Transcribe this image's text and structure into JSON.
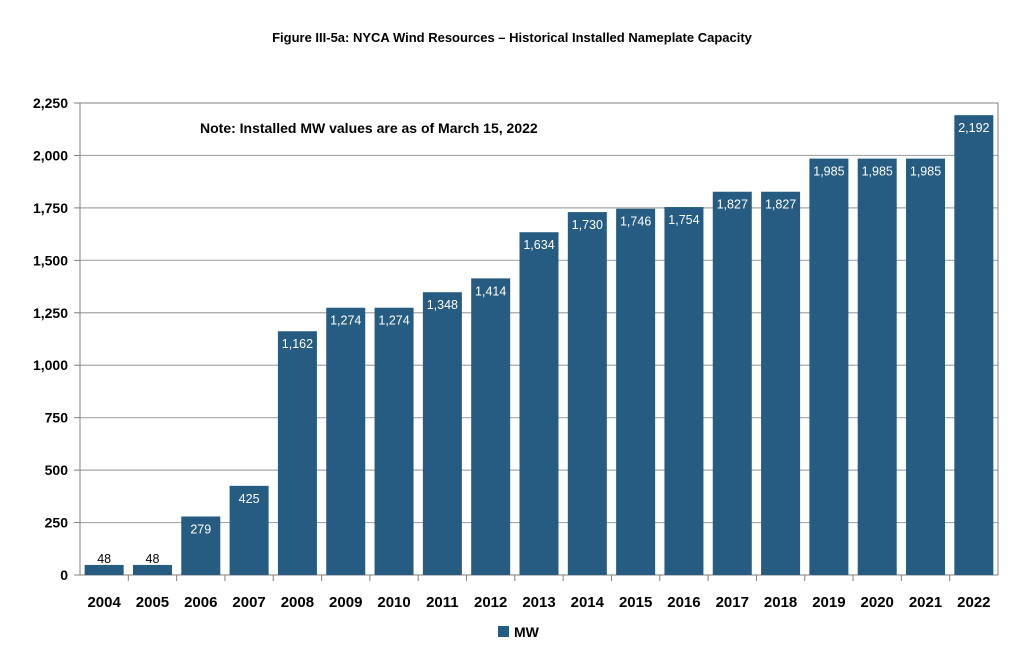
{
  "title": "Figure III-5a: NYCA Wind Resources – Historical Installed Nameplate Capacity",
  "note": "Note: Installed MW values are as of March 15, 2022",
  "colors": {
    "bar": "#265C82",
    "grid": "#A6A6A6",
    "axis": "#808080"
  },
  "chart_data": {
    "type": "bar",
    "title": "Figure III-5a: NYCA Wind Resources – Historical Installed Nameplate Capacity",
    "xlabel": "",
    "ylabel": "",
    "categories": [
      "2004",
      "2005",
      "2006",
      "2007",
      "2008",
      "2009",
      "2010",
      "2011",
      "2012",
      "2013",
      "2014",
      "2015",
      "2016",
      "2017",
      "2018",
      "2019",
      "2020",
      "2021",
      "2022"
    ],
    "series": [
      {
        "name": "MW",
        "values": [
          48,
          48,
          279,
          425,
          1162,
          1274,
          1274,
          1348,
          1414,
          1634,
          1730,
          1746,
          1754,
          1827,
          1827,
          1985,
          1985,
          1985,
          2192
        ],
        "labels": [
          "48",
          "48",
          "279",
          "425",
          "1,162",
          "1,274",
          "1,274",
          "1,348",
          "1,414",
          "1,634",
          "1,730",
          "1,746",
          "1,754",
          "1,827",
          "1,827",
          "1,985",
          "1,985",
          "1,985",
          "2,192"
        ]
      }
    ],
    "ylim": [
      0,
      2250
    ],
    "yticks": [
      0,
      250,
      500,
      750,
      1000,
      1250,
      1500,
      1750,
      2000,
      2250
    ],
    "ytick_labels": [
      "0",
      "250",
      "500",
      "750",
      "1,000",
      "1,250",
      "1,500",
      "1,750",
      "2,000",
      "2,250"
    ],
    "grid": true,
    "legend": "bottom-center",
    "annotations": [
      "Note: Installed MW values are as of March 15, 2022"
    ]
  }
}
